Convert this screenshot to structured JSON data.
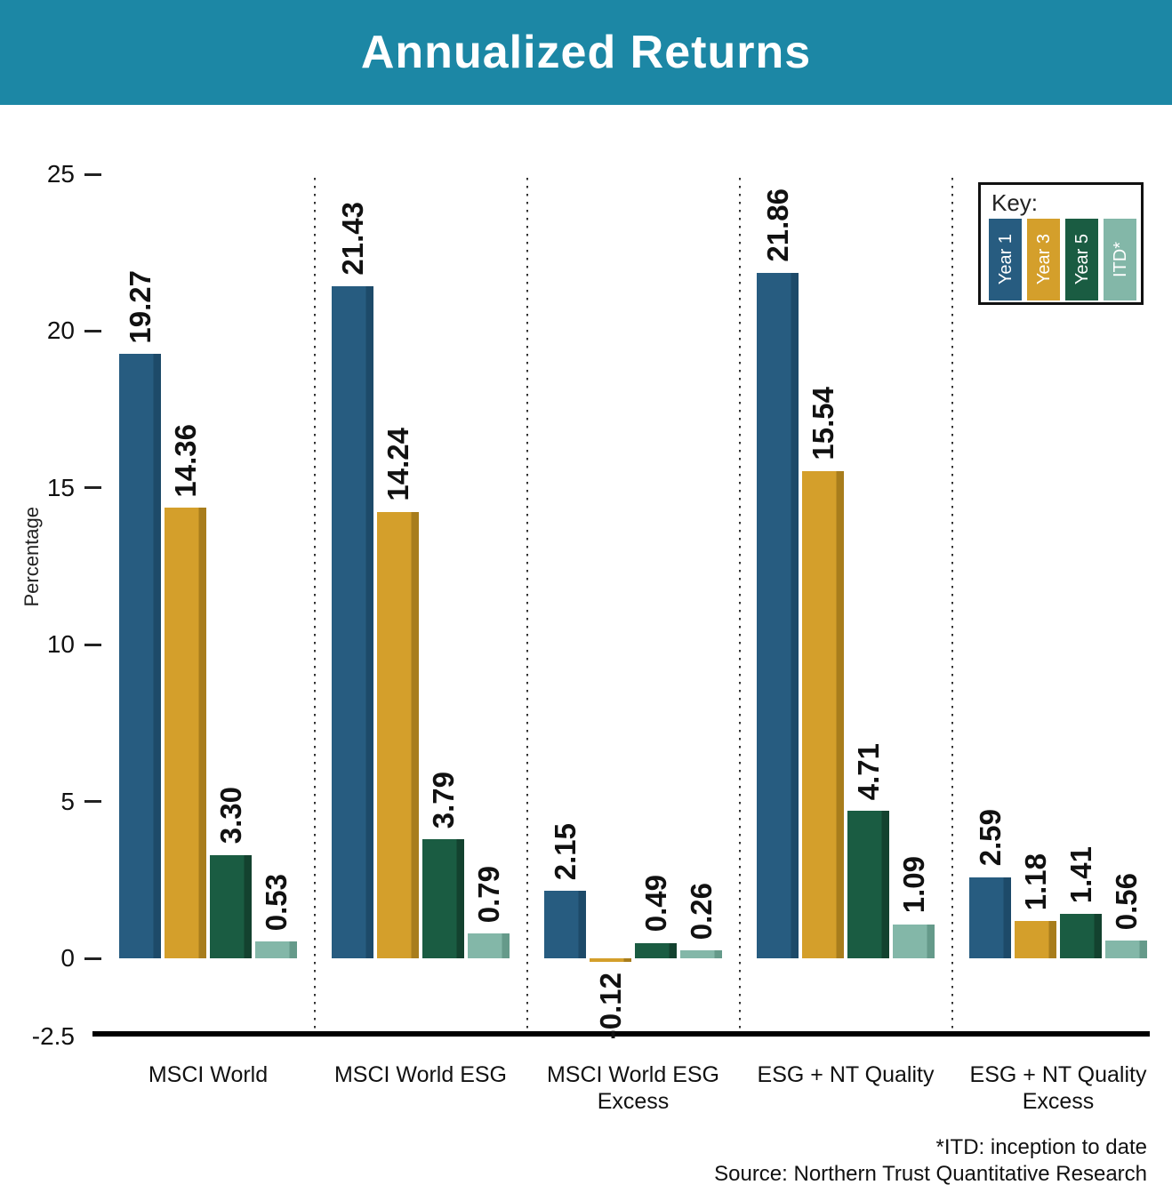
{
  "header": {
    "title": "Annualized Returns"
  },
  "colors": {
    "header_bg": "#1C87A5",
    "header_text": "#FFFFFF",
    "axis": "#000000",
    "label_text": "#111111"
  },
  "chart_data": {
    "type": "bar",
    "title": "Annualized Returns",
    "ylabel": "Percentage",
    "ylim": [
      -2.5,
      25
    ],
    "yticks": [
      25,
      20,
      15,
      10,
      5,
      0,
      -2.5
    ],
    "grid": false,
    "legend_position": "top-right",
    "categories": [
      "MSCI World",
      "MSCI World ESG",
      "MSCI World ESG Excess",
      "ESG + NT Quality",
      "ESG + NT Quality Excess"
    ],
    "series": [
      {
        "name": "Year 1",
        "color": "#275C80",
        "edge_color": "#1D4A69",
        "values": [
          19.27,
          21.43,
          2.15,
          21.86,
          2.59
        ]
      },
      {
        "name": "Year 3",
        "color": "#D49F2B",
        "edge_color": "#A87D1C",
        "values": [
          14.36,
          14.24,
          -0.12,
          15.54,
          1.18
        ]
      },
      {
        "name": "Year 5",
        "color": "#1A5C42",
        "edge_color": "#13422F",
        "values": [
          3.3,
          3.79,
          0.49,
          4.71,
          1.41
        ]
      },
      {
        "name": "ITD*",
        "color": "#83B7A8",
        "edge_color": "#659A8A",
        "values": [
          0.53,
          0.79,
          0.26,
          1.09,
          0.56
        ]
      }
    ]
  },
  "legend": {
    "title": "Key:"
  },
  "footnotes": [
    "*ITD: inception to date",
    "Source: Northern Trust Quantitative Research"
  ]
}
